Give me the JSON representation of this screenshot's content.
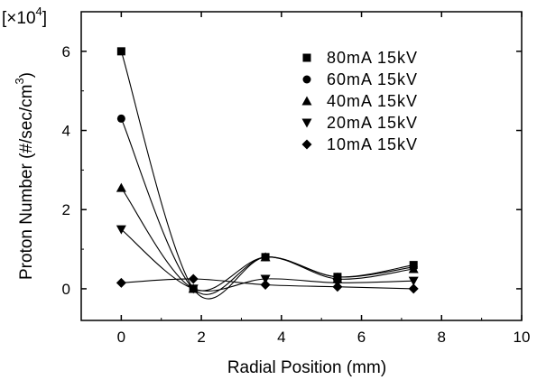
{
  "chart_data": {
    "type": "scatter",
    "xlabel": "Radial Position (mm)",
    "ylabel": "Proton Number  (#/sec/cm",
    "ylabel_superscript": "3",
    "ylabel_close": ")",
    "y_multiplier": "[×10",
    "y_multiplier_exp": "4",
    "y_multiplier_close": "]",
    "xlim": [
      -1,
      10
    ],
    "ylim": [
      -0.8,
      7
    ],
    "x_ticks": [
      0,
      2,
      4,
      6,
      8,
      10
    ],
    "y_ticks": [
      0,
      2,
      4,
      6
    ],
    "x_tick_labels": [
      "0",
      "2",
      "4",
      "6",
      "8",
      "10"
    ],
    "y_tick_labels": [
      "0",
      "2",
      "4",
      "6"
    ],
    "legend_position": "top-right",
    "series": [
      {
        "name": "80mA 15kV",
        "marker": "square",
        "x": [
          0,
          1.8,
          3.6,
          5.4,
          7.3
        ],
        "y": [
          6.0,
          0.0,
          0.8,
          0.3,
          0.6
        ]
      },
      {
        "name": "60mA 15kV",
        "marker": "circle",
        "x": [
          0,
          1.8,
          3.6,
          5.4,
          7.3
        ],
        "y": [
          4.3,
          0.0,
          0.8,
          0.3,
          0.55
        ]
      },
      {
        "name": "40mA 15kV",
        "marker": "triangle-up",
        "x": [
          0,
          1.8,
          3.6,
          5.4,
          7.3
        ],
        "y": [
          2.55,
          0.0,
          0.8,
          0.25,
          0.5
        ]
      },
      {
        "name": "20mA 15kV",
        "marker": "triangle-down",
        "x": [
          0,
          1.8,
          3.6,
          5.4,
          7.3
        ],
        "y": [
          1.5,
          0.0,
          0.25,
          0.15,
          0.2
        ]
      },
      {
        "name": "10mA 15kV",
        "marker": "diamond",
        "x": [
          0,
          1.8,
          3.6,
          5.4,
          7.3
        ],
        "y": [
          0.15,
          0.25,
          0.1,
          0.05,
          0.0
        ]
      }
    ]
  }
}
